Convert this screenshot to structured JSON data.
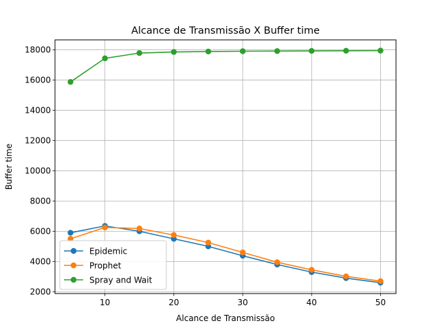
{
  "chart_data": {
    "type": "line",
    "title": "Alcance de Transmissão X Buffer time",
    "xlabel": "Alcance de Transmissão",
    "ylabel": "Buffer time",
    "x": [
      5,
      10,
      15,
      20,
      25,
      30,
      35,
      40,
      45,
      50
    ],
    "xlim": [
      2.75,
      52.25
    ],
    "ylim": [
      1880,
      18650
    ],
    "xticks": [
      10,
      20,
      30,
      40,
      50
    ],
    "yticks": [
      2000,
      4000,
      6000,
      8000,
      10000,
      12000,
      14000,
      16000,
      18000
    ],
    "grid": true,
    "legend_position": "lower-left",
    "series": [
      {
        "name": "Epidemic",
        "color": "#1f77b4",
        "values": [
          5900,
          6350,
          6000,
          5500,
          5000,
          4380,
          3800,
          3300,
          2900,
          2600
        ]
      },
      {
        "name": "Prophet",
        "color": "#ff7f0e",
        "values": [
          5500,
          6250,
          6180,
          5750,
          5250,
          4600,
          3950,
          3450,
          3020,
          2700
        ]
      },
      {
        "name": "Spray and Wait",
        "color": "#2ca02c",
        "values": [
          15870,
          17430,
          17780,
          17850,
          17880,
          17900,
          17910,
          17920,
          17930,
          17940
        ]
      }
    ]
  }
}
